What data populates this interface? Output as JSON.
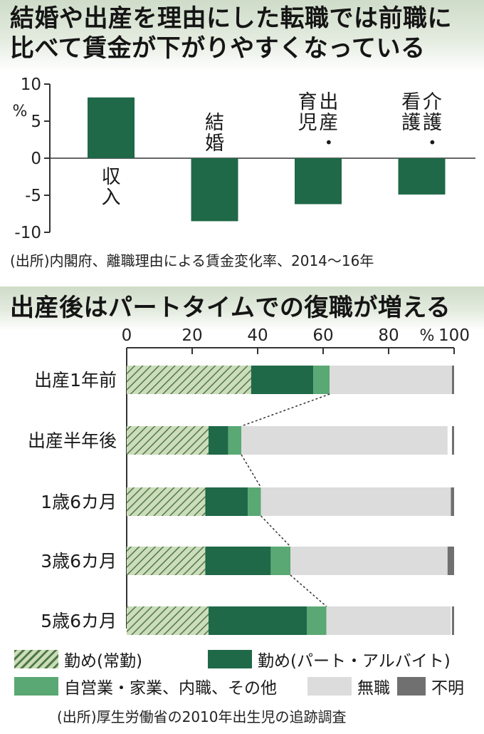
{
  "chart1": {
    "title_lines": [
      "結婚や出産を理由にした転職では前職に",
      "比べて賃金が下がりやすくなっている"
    ],
    "y_unit": "%",
    "source": "(出所)内閣府、離職理由による賃金変化率、2014～16年"
  },
  "chart2": {
    "title": "出産後はパートタイムでの復職が増える",
    "x_unit": "%",
    "legend": [
      "勤め(常勤)",
      "勤め(パート・アルバイト)",
      "自営業・家業、内職、その他",
      "無職",
      "不明"
    ],
    "source": "(出所)厚生労働省の2010年出生児の追跡調査"
  },
  "colors": {
    "bar_green": "#1f6848",
    "dark_green": "#1f6848",
    "mid_green": "#5aa873",
    "hatch_bg": "#ccdcbc",
    "hatch_line": "#4f7a44",
    "none_gray": "#dcdcdc",
    "unknown_gray": "#707070",
    "axis": "#333333"
  },
  "chart_data": [
    {
      "type": "bar",
      "title": "結婚や出産を理由にした転職では前職に比べて賃金が下がりやすくなっている",
      "categories": [
        "収入",
        "結婚",
        "出産・育児",
        "介護・看護"
      ],
      "category_label_columns": [
        [
          "収入"
        ],
        [
          "結婚"
        ],
        [
          "出産・",
          "育児"
        ],
        [
          "介護・",
          "看護"
        ]
      ],
      "values": [
        8.2,
        -8.5,
        -6.2,
        -4.9
      ],
      "ylabel": "%",
      "ylim": [
        -10,
        10
      ],
      "yticks": [
        10,
        5,
        0,
        -5,
        -10
      ],
      "ytick_labels": [
        "10",
        "5",
        "0",
        "-5",
        "-10"
      ],
      "grid": false
    },
    {
      "type": "bar",
      "orientation": "horizontal",
      "stacked": true,
      "title": "出産後はパートタイムでの復職が増える",
      "categories": [
        "出産1年前",
        "出産半年後",
        "1歳6カ月",
        "3歳6カ月",
        "5歳6カ月"
      ],
      "series": [
        {
          "name": "勤め(常勤)",
          "values": [
            38,
            25,
            24,
            24,
            25
          ]
        },
        {
          "name": "勤め(パート・アルバイト)",
          "values": [
            19,
            6,
            13,
            20,
            30
          ]
        },
        {
          "name": "自営業・家業、内職、その他",
          "values": [
            5,
            4,
            4,
            6,
            6
          ]
        },
        {
          "name": "無職",
          "values": [
            38,
            63,
            58,
            48,
            38
          ]
        },
        {
          "name": "不明",
          "values": [
            0.5,
            0.5,
            1,
            2,
            0.5
          ]
        }
      ],
      "xlim": [
        0,
        100
      ],
      "xticks": [
        0,
        20,
        40,
        60,
        80,
        100
      ],
      "xtick_labels": [
        "0",
        "20",
        "40",
        "60",
        "80",
        "100"
      ],
      "xlabel": "%",
      "connector_lines": "dotted lines between end of self-employed segment of consecutive rows",
      "legend_position": "bottom",
      "grid": false
    }
  ]
}
